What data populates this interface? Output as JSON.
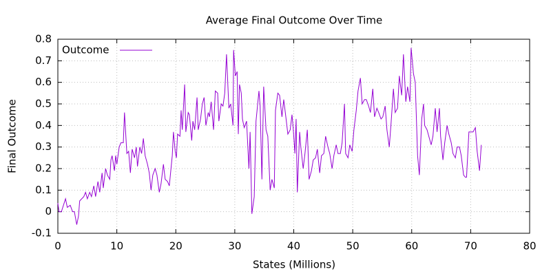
{
  "chart_data": {
    "type": "line",
    "title": "Average Final Outcome Over Time",
    "x_label": "States (Millions)",
    "y_label": "Final Outcome",
    "x": [
      0,
      0.2,
      0.6,
      1.3,
      1.6,
      2.1,
      2.5,
      2.8,
      3.2,
      3.5,
      3.7,
      4.4,
      4.7,
      5.0,
      5.4,
      5.7,
      6.1,
      6.4,
      6.8,
      7.1,
      7.5,
      7.7,
      8.1,
      8.4,
      8.8,
      9.0,
      9.2,
      9.6,
      9.8,
      10.0,
      10.4,
      10.7,
      11.1,
      11.3,
      11.7,
      12.0,
      12.3,
      12.6,
      13.0,
      13.3,
      13.5,
      13.9,
      14.2,
      14.5,
      14.8,
      15.2,
      15.5,
      15.8,
      16.1,
      16.5,
      16.8,
      17.2,
      17.5,
      17.9,
      18.2,
      18.6,
      18.9,
      19.4,
      19.6,
      19.9,
      20.1,
      20.3,
      20.7,
      20.9,
      21.1,
      21.5,
      21.7,
      22.1,
      22.3,
      22.7,
      22.9,
      23.2,
      23.6,
      23.8,
      24.2,
      24.5,
      24.8,
      25.1,
      25.5,
      25.7,
      26.0,
      26.4,
      26.7,
      27.1,
      27.3,
      27.7,
      28.0,
      28.3,
      28.6,
      29.0,
      29.3,
      29.7,
      29.8,
      30.1,
      30.4,
      30.6,
      30.8,
      31.1,
      31.3,
      31.6,
      32.0,
      32.4,
      32.6,
      32.9,
      33.3,
      33.6,
      34.1,
      34.3,
      34.6,
      34.9,
      35.3,
      35.6,
      36.0,
      36.3,
      36.7,
      36.9,
      37.3,
      37.6,
      38.0,
      38.3,
      38.7,
      39.0,
      39.4,
      39.7,
      39.9,
      40.2,
      40.4,
      40.6,
      41.0,
      41.2,
      41.6,
      41.9,
      42.3,
      42.6,
      43.0,
      43.3,
      43.7,
      44.0,
      44.4,
      44.7,
      45.1,
      45.4,
      45.8,
      46.1,
      46.5,
      46.8,
      47.2,
      47.5,
      47.9,
      48.2,
      48.6,
      48.8,
      49.2,
      49.5,
      49.9,
      50.2,
      50.6,
      50.9,
      51.3,
      51.6,
      52.0,
      52.3,
      52.7,
      53.0,
      53.4,
      53.7,
      54.1,
      54.4,
      54.8,
      55.1,
      55.5,
      55.8,
      56.2,
      56.5,
      56.9,
      57.2,
      57.6,
      57.9,
      58.3,
      58.6,
      59.0,
      59.3,
      59.7,
      59.9,
      60.3,
      60.6,
      61.0,
      61.3,
      61.7,
      62.0,
      62.2,
      62.6,
      62.9,
      63.3,
      63.6,
      64.0,
      64.3,
      64.7,
      64.9,
      65.3,
      65.6,
      66.0,
      66.3,
      66.7,
      67.0,
      67.4,
      67.7,
      68.1,
      68.4,
      68.8,
      69.1,
      69.3,
      69.7,
      70.1,
      70.4,
      70.8,
      71.1,
      71.5,
      71.8
    ],
    "series": [
      {
        "name": "Outcome",
        "color": "#9400d3",
        "values": [
          0.04,
          0.0,
          0.0,
          0.06,
          0.02,
          0.03,
          0.0,
          0.0,
          -0.06,
          -0.02,
          0.05,
          0.07,
          0.09,
          0.06,
          0.09,
          0.07,
          0.12,
          0.07,
          0.14,
          0.09,
          0.18,
          0.11,
          0.2,
          0.17,
          0.15,
          0.24,
          0.26,
          0.19,
          0.26,
          0.22,
          0.3,
          0.32,
          0.32,
          0.46,
          0.27,
          0.28,
          0.18,
          0.29,
          0.25,
          0.3,
          0.21,
          0.3,
          0.27,
          0.34,
          0.26,
          0.22,
          0.18,
          0.1,
          0.17,
          0.2,
          0.17,
          0.09,
          0.13,
          0.22,
          0.15,
          0.14,
          0.12,
          0.26,
          0.37,
          0.28,
          0.25,
          0.36,
          0.35,
          0.47,
          0.38,
          0.59,
          0.37,
          0.46,
          0.45,
          0.33,
          0.42,
          0.38,
          0.53,
          0.38,
          0.43,
          0.5,
          0.53,
          0.4,
          0.46,
          0.44,
          0.51,
          0.38,
          0.56,
          0.55,
          0.42,
          0.5,
          0.49,
          0.55,
          0.73,
          0.48,
          0.5,
          0.4,
          0.75,
          0.63,
          0.65,
          0.36,
          0.59,
          0.55,
          0.43,
          0.39,
          0.42,
          0.2,
          0.37,
          -0.01,
          0.07,
          0.42,
          0.56,
          0.49,
          0.15,
          0.58,
          0.38,
          0.35,
          0.1,
          0.15,
          0.11,
          0.47,
          0.55,
          0.54,
          0.44,
          0.52,
          0.43,
          0.36,
          0.38,
          0.45,
          0.39,
          0.27,
          0.43,
          0.09,
          0.37,
          0.3,
          0.2,
          0.27,
          0.38,
          0.15,
          0.19,
          0.24,
          0.25,
          0.29,
          0.18,
          0.26,
          0.27,
          0.35,
          0.3,
          0.27,
          0.2,
          0.26,
          0.31,
          0.27,
          0.27,
          0.32,
          0.5,
          0.27,
          0.25,
          0.31,
          0.28,
          0.38,
          0.47,
          0.56,
          0.62,
          0.5,
          0.52,
          0.52,
          0.49,
          0.46,
          0.57,
          0.44,
          0.48,
          0.46,
          0.43,
          0.44,
          0.49,
          0.38,
          0.3,
          0.41,
          0.57,
          0.46,
          0.48,
          0.63,
          0.54,
          0.73,
          0.51,
          0.58,
          0.51,
          0.76,
          0.64,
          0.6,
          0.26,
          0.17,
          0.43,
          0.5,
          0.4,
          0.38,
          0.35,
          0.31,
          0.35,
          0.48,
          0.37,
          0.48,
          0.35,
          0.24,
          0.32,
          0.4,
          0.36,
          0.32,
          0.27,
          0.25,
          0.3,
          0.3,
          0.26,
          0.17,
          0.16,
          0.16,
          0.37,
          0.37,
          0.37,
          0.39,
          0.28,
          0.19,
          0.31
        ]
      }
    ],
    "xlim": [
      0,
      80
    ],
    "ylim": [
      -0.1,
      0.8
    ],
    "xticks": [
      0,
      10,
      20,
      30,
      40,
      50,
      60,
      70,
      80
    ],
    "yticks": [
      -0.1,
      0,
      0.1,
      0.2,
      0.3,
      0.4,
      0.5,
      0.6,
      0.7,
      0.8
    ],
    "grid": true,
    "legend": "top-left"
  }
}
